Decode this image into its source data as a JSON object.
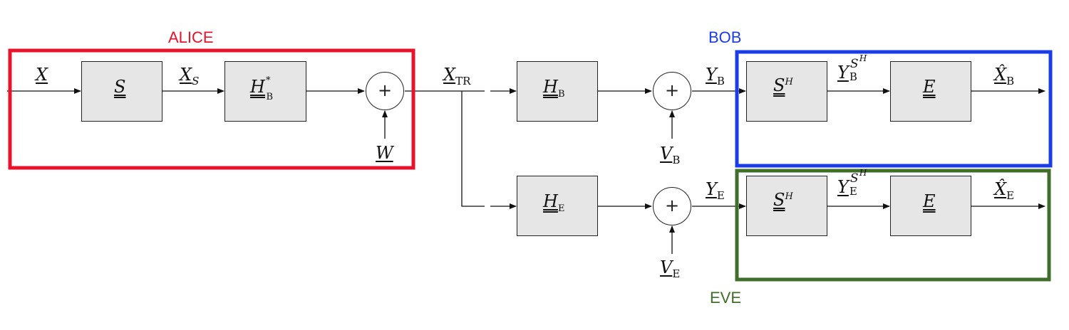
{
  "groups": {
    "alice": {
      "label": "ALICE",
      "color": "#e8132b"
    },
    "bob": {
      "label": "BOB",
      "color": "#1a3ce8"
    },
    "eve": {
      "label": "EVE",
      "color": "#3f6e2a"
    }
  },
  "signals": {
    "x": "X",
    "x_s": "X",
    "x_s_sub": "S",
    "x_tr": "X",
    "x_tr_sub": "TR",
    "w": "W",
    "v_b": "V",
    "v_b_sub": "B",
    "v_e": "V",
    "v_e_sub": "E",
    "y_b": "Y",
    "y_b_sub": "B",
    "y_e": "Y",
    "y_e_sub": "E",
    "y_b_s": "Y",
    "y_b_s_sub": "B",
    "y_b_s_sup": "S",
    "y_b_s_supsup": "H",
    "y_e_s": "Y",
    "y_e_s_sub": "E",
    "y_e_s_sup": "S",
    "y_e_s_supsup": "H",
    "xhat_b": "X̂",
    "xhat_b_sub": "B",
    "xhat_e": "X̂",
    "xhat_e_sub": "E"
  },
  "blocks": {
    "s": "S",
    "h_b_conj": "H",
    "h_b_conj_sub": "B",
    "h_b_conj_sup": "*",
    "h_b": "H",
    "h_b_sub": "B",
    "h_e": "H",
    "h_e_sub": "E",
    "s_h_bob": "S",
    "s_h_bob_sup": "H",
    "e_bob": "E",
    "s_h_eve": "S",
    "s_h_eve_sup": "H",
    "e_eve": "E"
  },
  "summers": {
    "symbol": "+"
  }
}
